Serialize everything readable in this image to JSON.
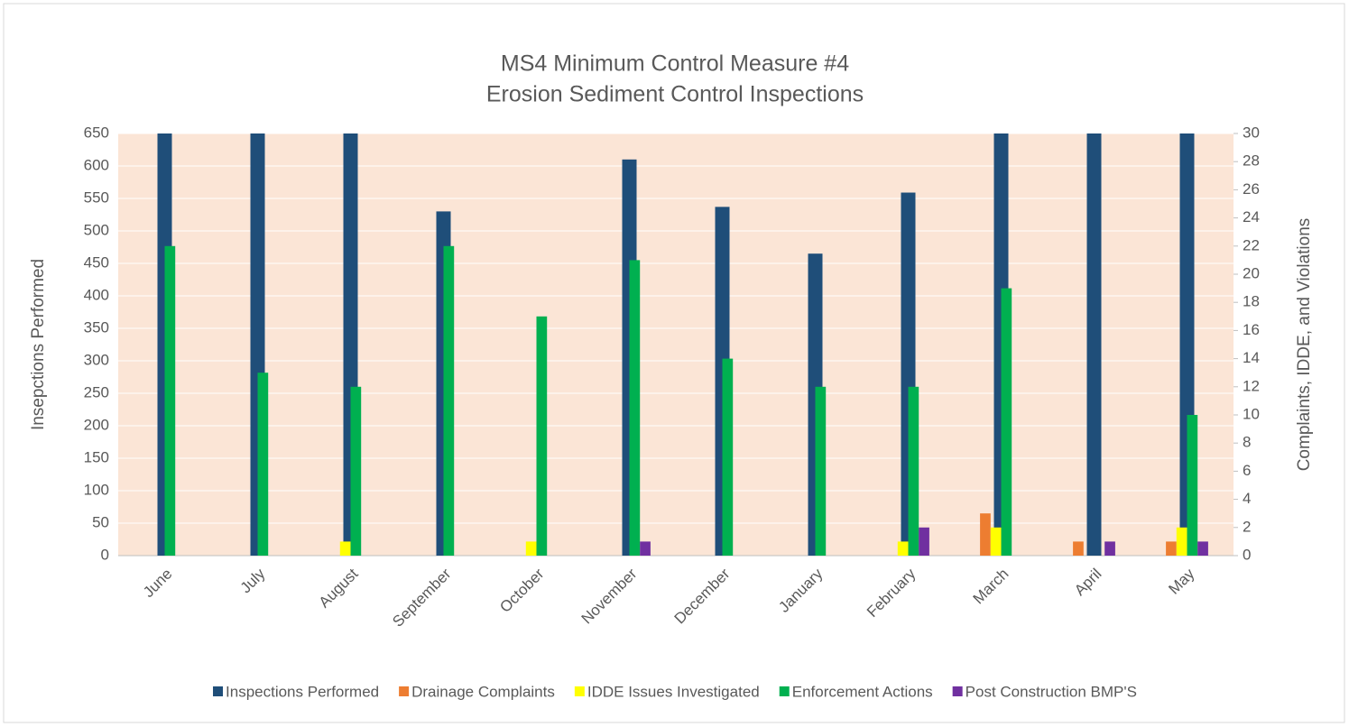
{
  "chart_data": {
    "type": "bar",
    "title": [
      "MS4 Minimum Control Measure #4",
      "Erosion Sediment Control Inspections"
    ],
    "categories": [
      "June",
      "July",
      "August",
      "September",
      "October",
      "November",
      "December",
      "January",
      "February",
      "March",
      "April",
      "May"
    ],
    "y_label": "Insepctions Performed",
    "y2_label": "Complaints, IDDE, and Violations",
    "ylim": [
      0,
      650
    ],
    "yticks": [
      0,
      50,
      100,
      150,
      200,
      250,
      300,
      350,
      400,
      450,
      500,
      550,
      600,
      650
    ],
    "y2lim": [
      0,
      30
    ],
    "y2ticks": [
      0,
      2,
      4,
      6,
      8,
      10,
      12,
      14,
      16,
      18,
      20,
      22,
      24,
      26,
      28,
      30
    ],
    "legend": "bottom",
    "series": [
      {
        "name": "Inspections Performed",
        "color": "#1f4e79",
        "axis": "y",
        "values": [
          650,
          650,
          650,
          530,
          null,
          610,
          537,
          465,
          559,
          650,
          650,
          650
        ]
      },
      {
        "name": "Drainage Complaints",
        "color": "#ed7d31",
        "axis": "y2",
        "values": [
          0,
          0,
          0,
          0,
          0,
          0,
          0,
          0,
          0,
          3,
          1,
          1
        ]
      },
      {
        "name": "IDDE Issues Investigated",
        "color": "#ffff00",
        "axis": "y2",
        "values": [
          0,
          0,
          1,
          0,
          1,
          0,
          0,
          0,
          1,
          2,
          0,
          2
        ]
      },
      {
        "name": "Enforcement Actions",
        "color": "#00b050",
        "axis": "y2",
        "values": [
          22,
          13,
          12,
          22,
          17,
          21,
          14,
          12,
          12,
          19,
          0,
          10
        ]
      },
      {
        "name": "Post Construction BMP'S",
        "color": "#7030a0",
        "axis": "y2",
        "values": [
          0,
          0,
          0,
          0,
          0,
          1,
          0,
          0,
          2,
          0,
          1,
          1
        ]
      }
    ]
  }
}
